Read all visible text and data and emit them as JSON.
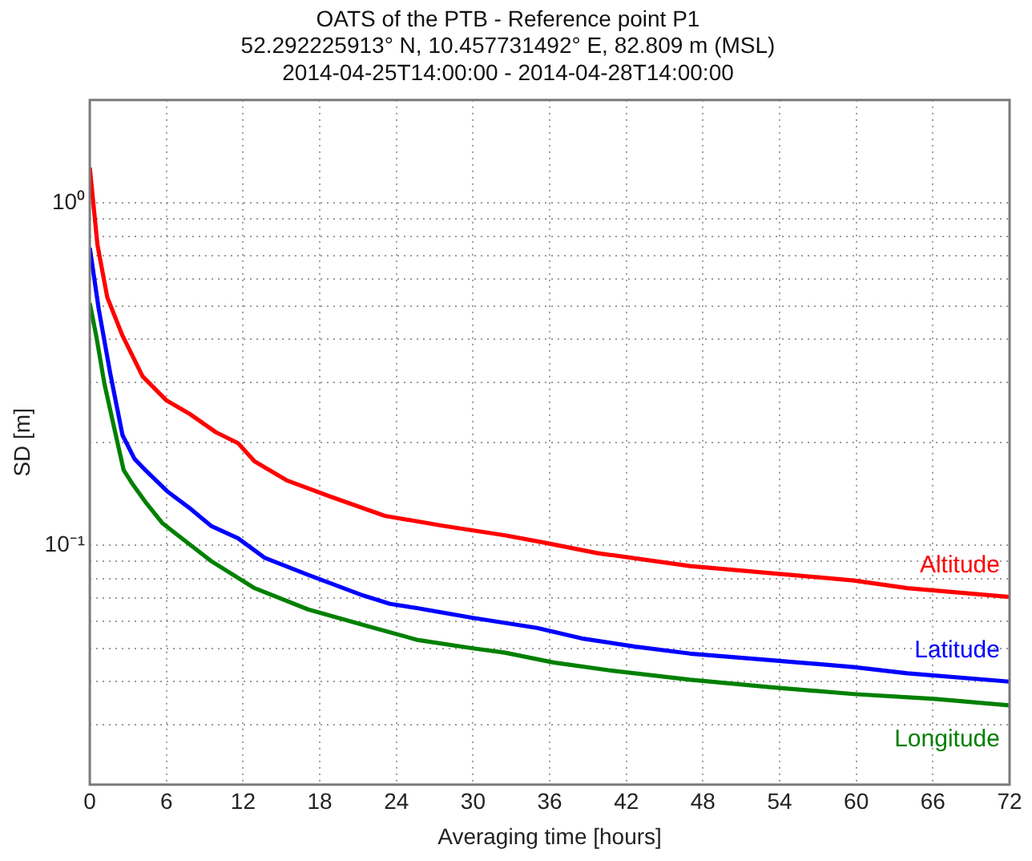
{
  "chart_data": {
    "type": "line",
    "title": "OATS of the PTB - Reference point P1\n52.292225913° N, 10.457731492° E, 82.809 m (MSL)\n2014-04-25T14:00:00 - 2014-04-28T14:00:00",
    "xlabel": "Averaging time [hours]",
    "ylabel": "SD [m]",
    "xlim": [
      0,
      72
    ],
    "xticks": [
      0,
      6,
      12,
      18,
      24,
      30,
      36,
      42,
      48,
      54,
      60,
      66,
      72
    ],
    "ylim": [
      0.02,
      2
    ],
    "log": "y",
    "yticks": [
      {
        "value": 0.03,
        "label": null
      },
      {
        "value": 0.04,
        "label": null
      },
      {
        "value": 0.05,
        "label": null
      },
      {
        "value": 0.06,
        "label": null
      },
      {
        "value": 0.07,
        "label": null
      },
      {
        "value": 0.08,
        "label": null
      },
      {
        "value": 0.09,
        "label": null
      },
      {
        "value": 0.1,
        "label": "10⁻¹"
      },
      {
        "value": 0.2,
        "label": null
      },
      {
        "value": 0.3,
        "label": null
      },
      {
        "value": 0.4,
        "label": null
      },
      {
        "value": 0.5,
        "label": null
      },
      {
        "value": 0.6,
        "label": null
      },
      {
        "value": 0.7,
        "label": null
      },
      {
        "value": 0.8,
        "label": null
      },
      {
        "value": 0.9,
        "label": null
      },
      {
        "value": 1,
        "label": "10⁰"
      }
    ],
    "grid": true,
    "marker": "none",
    "line_style": "solid",
    "series": [
      {
        "name": "Altitude",
        "color": "#ff0000",
        "x": [
          0,
          0.6,
          1.37,
          2.56,
          4.13,
          6.01,
          7.76,
          9.88,
          11.6,
          12.9,
          15.4,
          18.8,
          23.1,
          27.7,
          32.5,
          35.5,
          39.7,
          47,
          59.8,
          64,
          72
        ],
        "values": [
          1.27,
          0.755,
          0.53,
          0.41,
          0.312,
          0.265,
          0.243,
          0.214,
          0.199,
          0.176,
          0.155,
          0.139,
          0.122,
          0.114,
          0.107,
          0.102,
          0.095,
          0.087,
          0.079,
          0.075,
          0.0707
        ]
      },
      {
        "name": "Latitude",
        "color": "#0000ff",
        "x": [
          0,
          0.7,
          1.6,
          2.56,
          3.5,
          4.35,
          6.05,
          7.76,
          9.5,
          11.6,
          13.7,
          17.1,
          21.4,
          23.5,
          25.7,
          29.9,
          35,
          38.5,
          42.7,
          47,
          53.4,
          59.8,
          64,
          72
        ],
        "values": [
          0.74,
          0.49,
          0.318,
          0.21,
          0.179,
          0.166,
          0.144,
          0.129,
          0.114,
          0.105,
          0.092,
          0.082,
          0.0714,
          0.0675,
          0.0655,
          0.0615,
          0.0574,
          0.0535,
          0.0506,
          0.0483,
          0.0462,
          0.0441,
          0.0423,
          0.04
        ]
      },
      {
        "name": "Longitude",
        "color": "#008000",
        "x": [
          0,
          0.5,
          1.15,
          2,
          2.65,
          3.3,
          4.35,
          5.7,
          6.9,
          9.5,
          12.9,
          17.1,
          21.4,
          25.7,
          29.9,
          32.5,
          36.3,
          40.6,
          47,
          53.4,
          59.8,
          66.2,
          72
        ],
        "values": [
          0.51,
          0.41,
          0.296,
          0.213,
          0.166,
          0.152,
          0.134,
          0.116,
          0.107,
          0.09,
          0.075,
          0.065,
          0.0586,
          0.0529,
          0.0501,
          0.0486,
          0.0455,
          0.0432,
          0.0405,
          0.0385,
          0.0368,
          0.0356,
          0.0341
        ]
      }
    ]
  }
}
